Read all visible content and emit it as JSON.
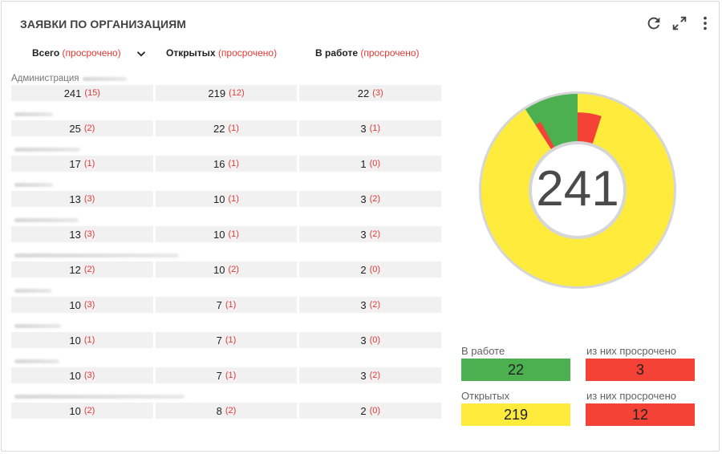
{
  "widget": {
    "title": "ЗАЯВКИ ПО ОРГАНИЗАЦИЯМ",
    "icons": [
      "refresh-icon",
      "expand-icon",
      "more-vert-icon"
    ]
  },
  "columns": {
    "total": {
      "label": "Всего",
      "overdue": "(просрочено)"
    },
    "open": {
      "label": "Открытых",
      "overdue": "(просрочено)"
    },
    "in_work": {
      "label": "В работе",
      "overdue": "(просрочено)"
    }
  },
  "rows": [
    {
      "org": "Администрация",
      "total": "241",
      "total_ov": "(15)",
      "open": "219",
      "open_ov": "(12)",
      "work": "22",
      "work_ov": "(3)"
    },
    {
      "org": "",
      "total": "25",
      "total_ov": "(2)",
      "open": "22",
      "open_ov": "(1)",
      "work": "3",
      "work_ov": "(1)"
    },
    {
      "org": "",
      "total": "17",
      "total_ov": "(1)",
      "open": "16",
      "open_ov": "(1)",
      "work": "1",
      "work_ov": "(0)"
    },
    {
      "org": "",
      "total": "13",
      "total_ov": "(3)",
      "open": "10",
      "open_ov": "(1)",
      "work": "3",
      "work_ov": "(2)"
    },
    {
      "org": "",
      "total": "13",
      "total_ov": "(3)",
      "open": "10",
      "open_ov": "(1)",
      "work": "3",
      "work_ov": "(2)"
    },
    {
      "org": "",
      "total": "12",
      "total_ov": "(2)",
      "open": "10",
      "open_ov": "(2)",
      "work": "2",
      "work_ov": "(0)"
    },
    {
      "org": "",
      "total": "10",
      "total_ov": "(3)",
      "open": "7",
      "open_ov": "(1)",
      "work": "3",
      "work_ov": "(2)"
    },
    {
      "org": "",
      "total": "10",
      "total_ov": "(1)",
      "open": "7",
      "open_ov": "(1)",
      "work": "3",
      "work_ov": "(0)"
    },
    {
      "org": "",
      "total": "10",
      "total_ov": "(3)",
      "open": "7",
      "open_ov": "(1)",
      "work": "3",
      "work_ov": "(2)"
    },
    {
      "org": "",
      "total": "10",
      "total_ov": "(2)",
      "open": "8",
      "open_ov": "(2)",
      "work": "2",
      "work_ov": "(0)"
    }
  ],
  "donut": {
    "center_value": "241",
    "segments": [
      {
        "name": "open",
        "value": 219,
        "overdue": 12,
        "color": "#ffeb3b",
        "overdue_color": "#f44336"
      },
      {
        "name": "in_work",
        "value": 22,
        "overdue": 3,
        "color": "#4caf50",
        "overdue_color": "#f44336"
      }
    ],
    "ring_color": "#d6d6d6"
  },
  "legend": {
    "in_work_label": "В работе",
    "in_work_value": "22",
    "in_work_overdue_label": "из них просрочено",
    "in_work_overdue_value": "3",
    "open_label": "Открытых",
    "open_value": "219",
    "open_overdue_label": "из них просрочено",
    "open_overdue_value": "12",
    "colors": {
      "green": "#4caf50",
      "yellow": "#ffeb3b",
      "red": "#f44336"
    }
  }
}
